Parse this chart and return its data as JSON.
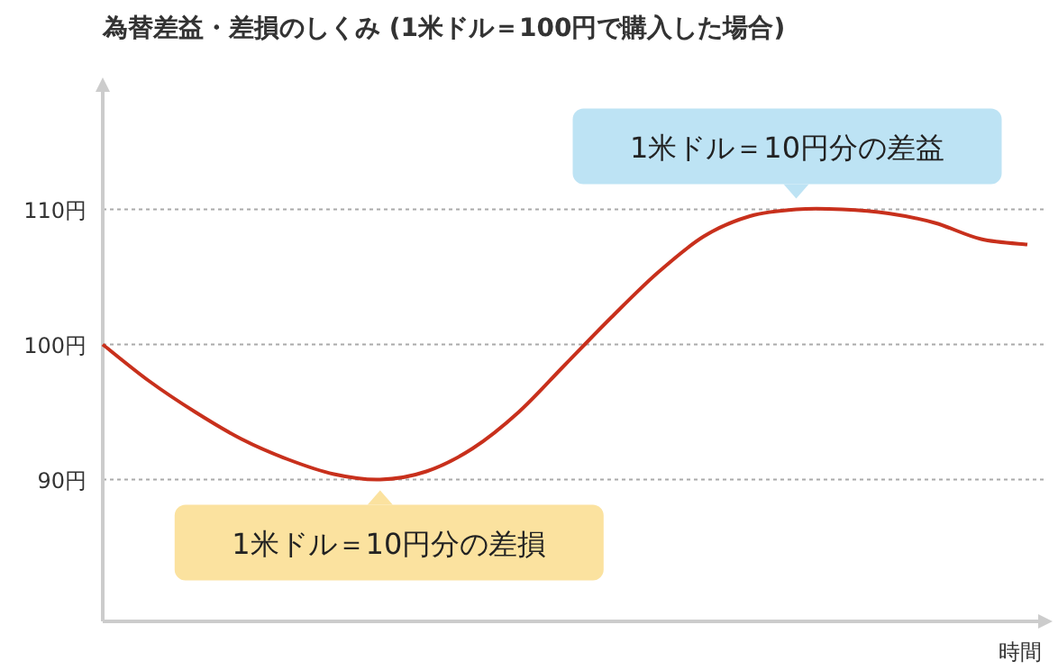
{
  "chart_data": {
    "type": "line",
    "title": "為替差益・差損のしくみ (1米ドル＝100円で購入した場合)",
    "xlabel": "時間",
    "categories": [
      null,
      null,
      null,
      null,
      null,
      null,
      null,
      null,
      null,
      null,
      null,
      null,
      null,
      null,
      null,
      null,
      null,
      null,
      null,
      null,
      null
    ],
    "series": [
      {
        "color": "#c8301c",
        "values": [
          100,
          97.3,
          95,
          93,
          91.5,
          90.4,
          90,
          90.6,
          92.3,
          95,
          98.5,
          102,
          105.3,
          108,
          109.5,
          110,
          110,
          109.7,
          109,
          107.8,
          107.4
        ]
      }
    ],
    "ylim": [
      79.5,
      119.5
    ],
    "yticks": [
      {
        "value": 90,
        "label": "90円"
      },
      {
        "value": 100,
        "label": "100円"
      },
      {
        "value": 110,
        "label": "110円"
      }
    ],
    "grid": "y",
    "marker": "none",
    "line_style": "solid",
    "annotations": [
      {
        "text": "1米ドル＝10円分の差益",
        "y": 110
      },
      {
        "text": "1米ドル＝10円分の差損",
        "y": 90
      }
    ]
  }
}
